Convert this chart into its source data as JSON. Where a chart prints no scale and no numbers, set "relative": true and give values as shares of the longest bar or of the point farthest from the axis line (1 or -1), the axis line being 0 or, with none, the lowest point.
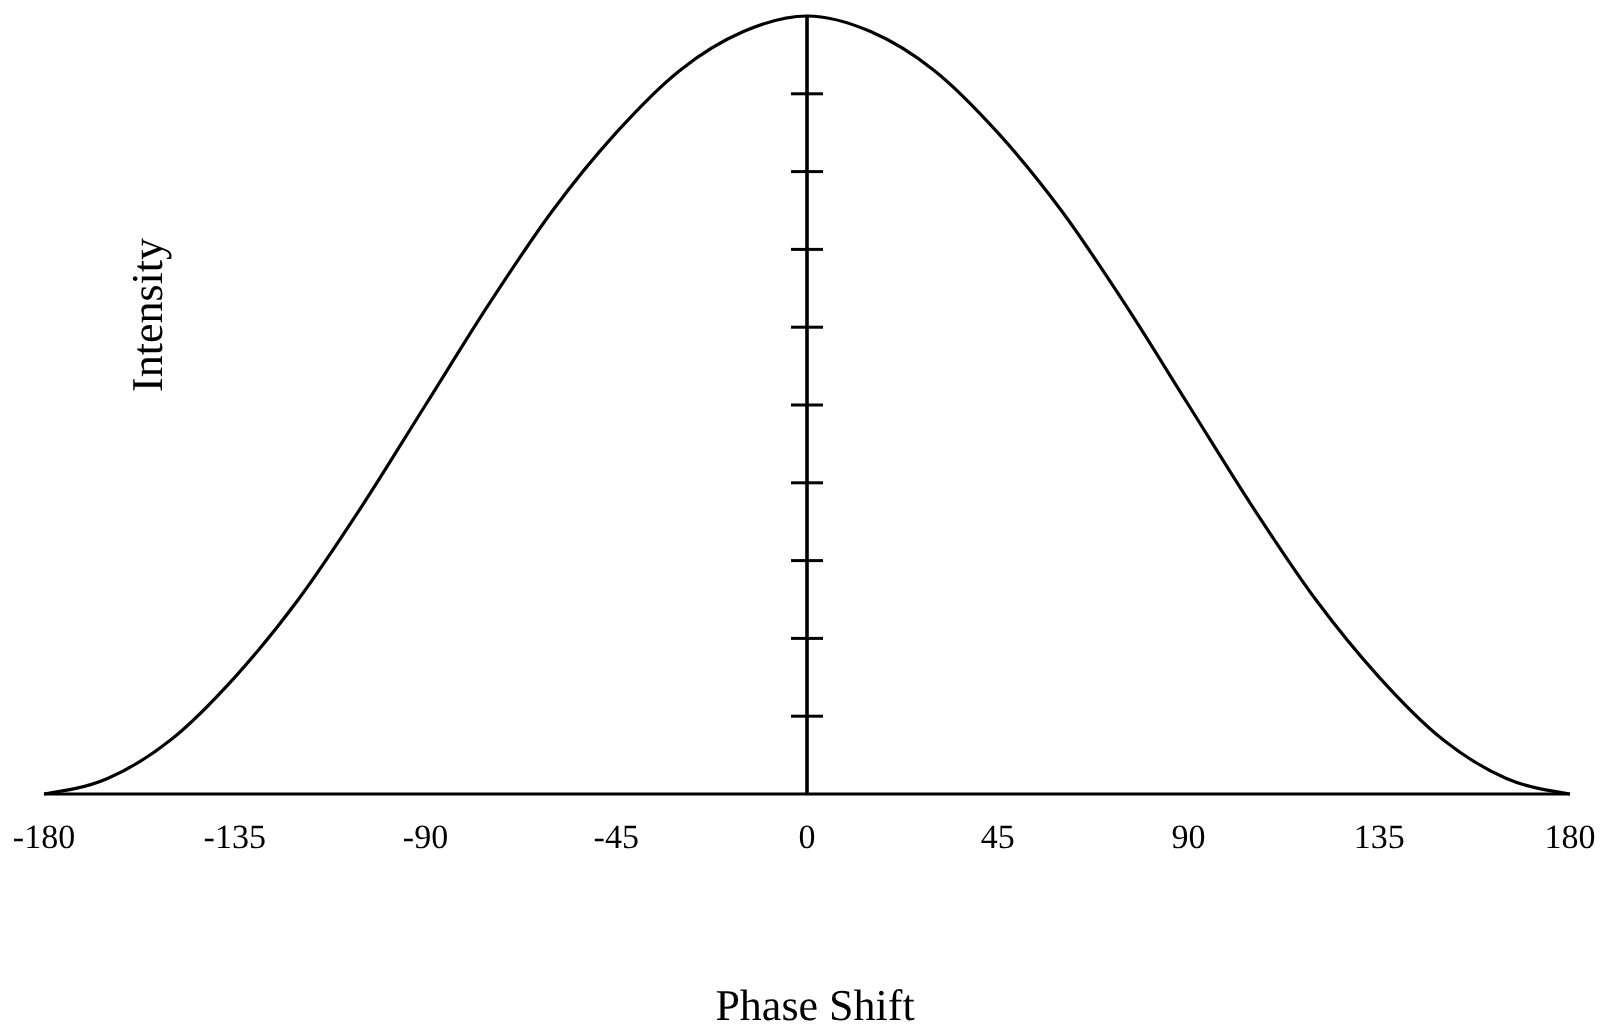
{
  "chart_data": {
    "type": "line",
    "xlabel": "Phase Shift",
    "ylabel": "Intensity",
    "relative": true,
    "x": [
      -180,
      -165,
      -150,
      -135,
      -120,
      -105,
      -90,
      -75,
      -60,
      -45,
      -30,
      -15,
      0,
      15,
      30,
      45,
      60,
      75,
      90,
      105,
      120,
      135,
      150,
      165,
      180
    ],
    "series": [
      {
        "color": "#000000",
        "values": [
          0,
          0.02,
          0.07,
          0.15,
          0.25,
          0.37,
          0.5,
          0.63,
          0.75,
          0.85,
          0.93,
          0.98,
          1,
          0.98,
          0.93,
          0.85,
          0.75,
          0.63,
          0.5,
          0.37,
          0.25,
          0.15,
          0.07,
          0.02,
          0
        ]
      }
    ],
    "xlim": [
      -180,
      180
    ],
    "xticks": [
      -180,
      -135,
      -90,
      -45,
      0,
      45,
      90,
      135,
      180
    ],
    "ref_lines": [
      {
        "axis": "x",
        "value": 0
      }
    ],
    "grid": false,
    "line_style": "solid"
  }
}
